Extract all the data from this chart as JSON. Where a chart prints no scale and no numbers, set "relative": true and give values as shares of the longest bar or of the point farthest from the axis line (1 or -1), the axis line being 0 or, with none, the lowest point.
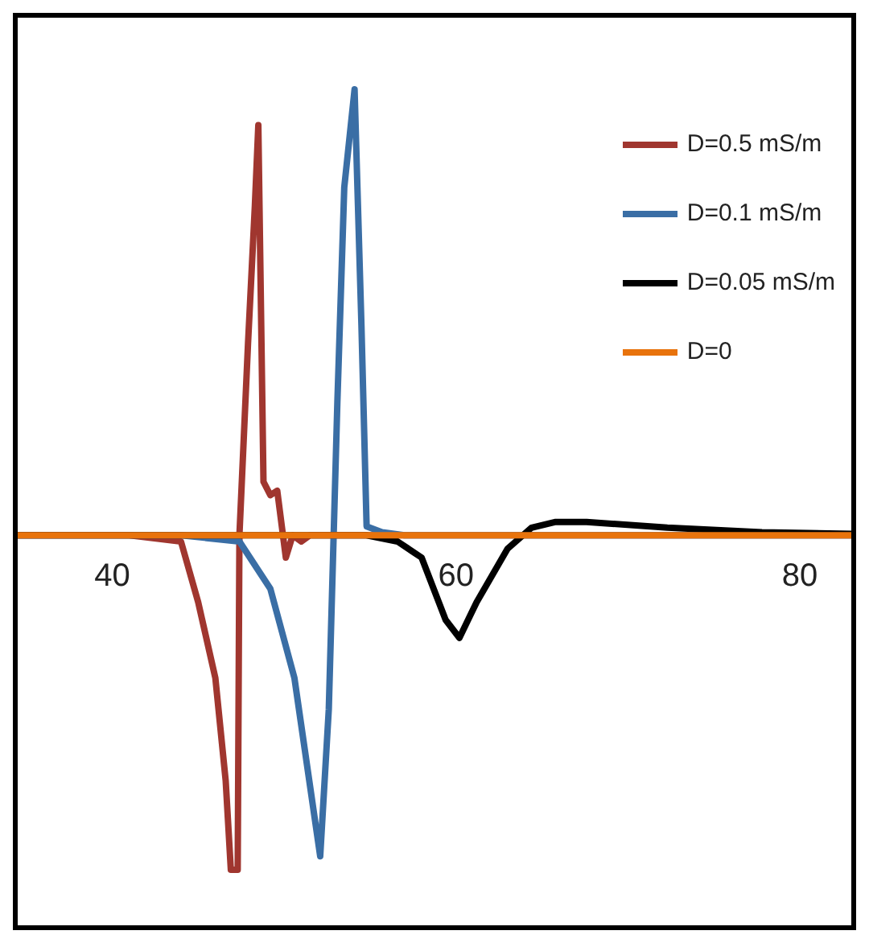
{
  "chart_data": {
    "type": "line",
    "relative": true,
    "xlim": [
      34.5,
      83
    ],
    "xticks": [
      40,
      60,
      80
    ],
    "legend": "top right",
    "marker": "none",
    "line_style": "solid",
    "grid": false,
    "series": [
      {
        "name": "D=0.5 mS/m",
        "color": "#a0362f",
        "x": [
          34.5,
          41,
          44,
          45,
          46,
          46.6,
          46.9,
          47.3,
          47.4,
          47.9,
          48.3,
          48.5,
          48.8,
          49.2,
          49.6,
          50.1,
          50.5,
          51,
          51.5,
          83
        ],
        "values": [
          0,
          0,
          -0.014,
          -0.15,
          -0.32,
          -0.55,
          -0.75,
          -0.75,
          0,
          0.43,
          0.74,
          0.92,
          0.12,
          0.09,
          0.1,
          -0.05,
          0,
          -0.014,
          0,
          0
        ]
      },
      {
        "name": "D=0.1 mS/m",
        "color": "#3a6ea5",
        "x": [
          34.5,
          44,
          47.4,
          49.2,
          50.6,
          51.5,
          52.1,
          52.6,
          53.1,
          53.5,
          54.1,
          54.5,
          54.8,
          55.7,
          57,
          83
        ],
        "values": [
          0,
          0,
          -0.014,
          -0.12,
          -0.32,
          -0.56,
          -0.72,
          -0.39,
          0.3,
          0.78,
          1,
          0.47,
          0.02,
          0.007,
          0,
          0
        ]
      },
      {
        "name": "D=0.05 mS/m",
        "color": "#000000",
        "x": [
          34.5,
          54.8,
          56.6,
          58,
          59.4,
          60.2,
          61.2,
          63,
          64.4,
          65.8,
          67.6,
          72.3,
          77.8,
          83
        ],
        "values": [
          0,
          0,
          -0.014,
          -0.05,
          -0.19,
          -0.23,
          -0.15,
          -0.03,
          0.017,
          0.03,
          0.03,
          0.017,
          0.007,
          0.003
        ]
      },
      {
        "name": "D=0",
        "color": "#e8730c",
        "x": [
          34.5,
          83
        ],
        "values": [
          0,
          0
        ]
      }
    ]
  }
}
